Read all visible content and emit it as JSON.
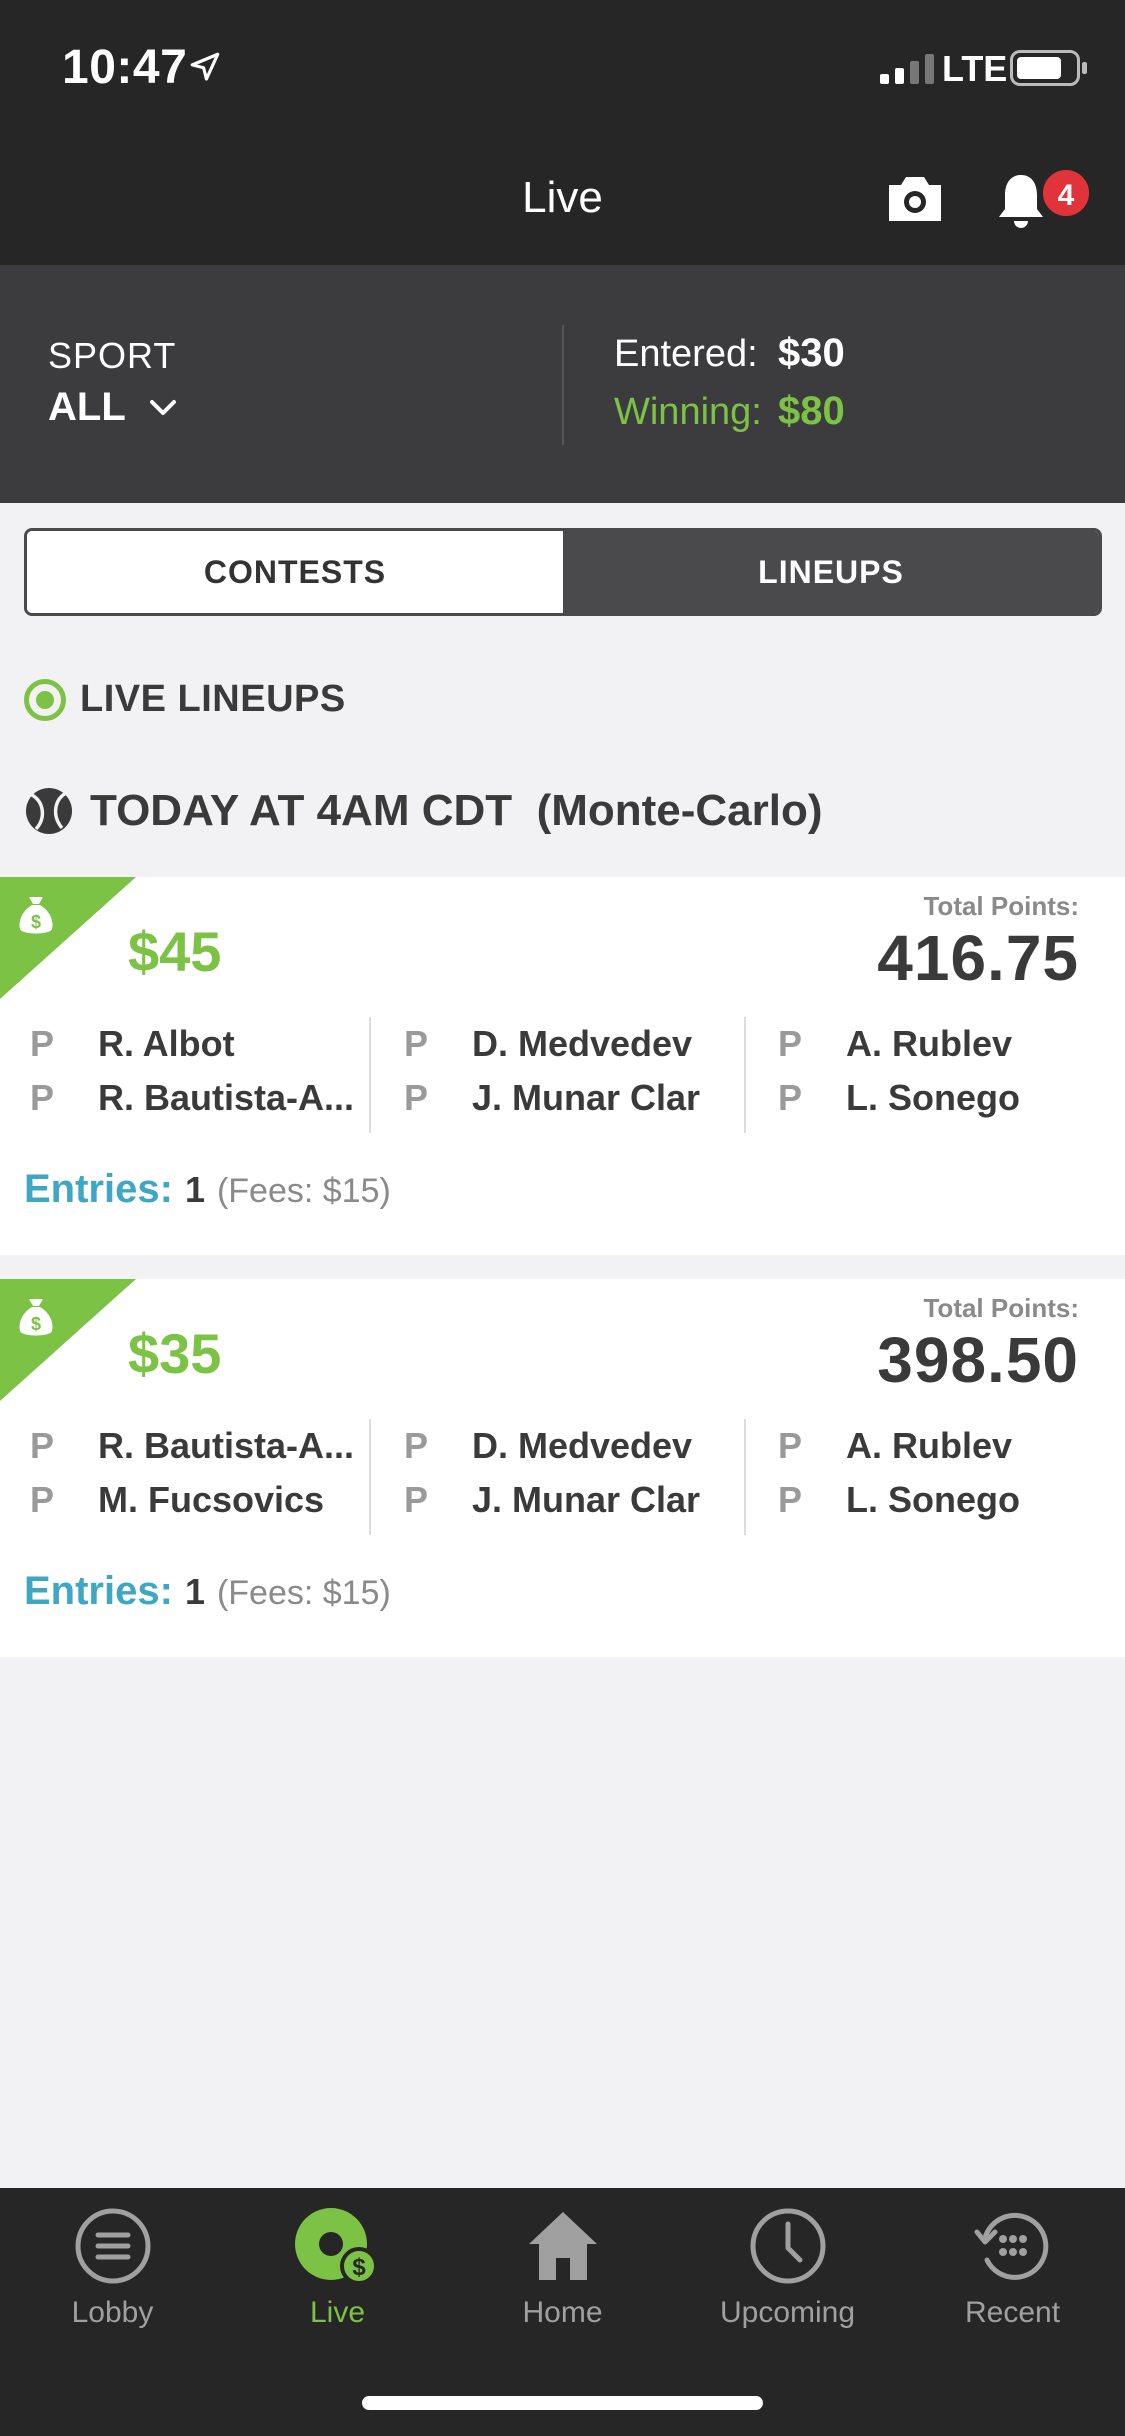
{
  "status_bar": {
    "time": "10:47",
    "network": "LTE"
  },
  "nav": {
    "title": "Live",
    "notification_count": "4"
  },
  "summary": {
    "sport_label": "SPORT",
    "sport_value": "ALL",
    "entered_label": "Entered:",
    "entered_value": "$30",
    "winning_label": "Winning:",
    "winning_value": "$80"
  },
  "segments": {
    "contests": "CONTESTS",
    "lineups": "LINEUPS",
    "selected": "LINEUPS"
  },
  "section_title": "LIVE LINEUPS",
  "event": {
    "title": "TODAY AT 4AM CDT  (Monte-Carlo)"
  },
  "lineups": [
    {
      "prize": "$45",
      "total_points_label": "Total Points:",
      "total_points": "416.75",
      "players": [
        [
          {
            "pos": "P",
            "name": "R. Albot"
          },
          {
            "pos": "P",
            "name": "R. Bautista-A..."
          }
        ],
        [
          {
            "pos": "P",
            "name": "D. Medvedev"
          },
          {
            "pos": "P",
            "name": "J. Munar Clar"
          }
        ],
        [
          {
            "pos": "P",
            "name": "A. Rublev"
          },
          {
            "pos": "P",
            "name": "L. Sonego"
          }
        ]
      ],
      "entries_label": "Entries:",
      "entries_count": "1",
      "fees": "(Fees: $15)"
    },
    {
      "prize": "$35",
      "total_points_label": "Total Points:",
      "total_points": "398.50",
      "players": [
        [
          {
            "pos": "P",
            "name": "R. Bautista-A..."
          },
          {
            "pos": "P",
            "name": "M. Fucsovics"
          }
        ],
        [
          {
            "pos": "P",
            "name": "D. Medvedev"
          },
          {
            "pos": "P",
            "name": "J. Munar Clar"
          }
        ],
        [
          {
            "pos": "P",
            "name": "A. Rublev"
          },
          {
            "pos": "P",
            "name": "L. Sonego"
          }
        ]
      ],
      "entries_label": "Entries:",
      "entries_count": "1",
      "fees": "(Fees: $15)"
    }
  ],
  "tabbar": {
    "tabs": [
      {
        "label": "Lobby",
        "icon": "menu-circle-icon"
      },
      {
        "label": "Live",
        "icon": "live-money-icon"
      },
      {
        "label": "Home",
        "icon": "home-icon"
      },
      {
        "label": "Upcoming",
        "icon": "clock-icon"
      },
      {
        "label": "Recent",
        "icon": "history-icon"
      }
    ],
    "active": "Live"
  },
  "colors": {
    "accent_green": "#7cc245",
    "entries_blue": "#3fa7c4",
    "dark_bg": "#262626",
    "badge_red": "#e0333a"
  }
}
